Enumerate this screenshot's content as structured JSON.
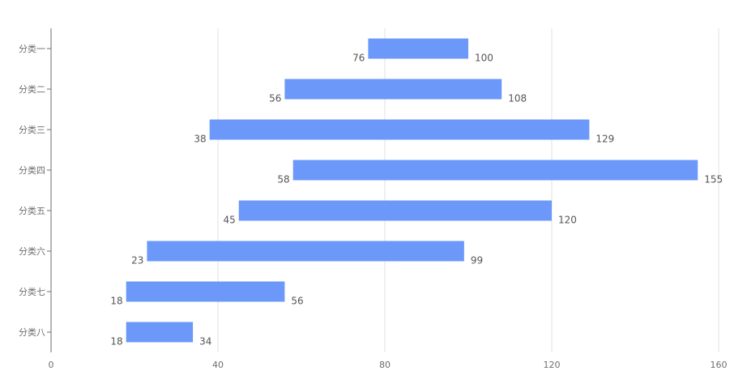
{
  "chart_data": {
    "type": "bar",
    "orientation": "horizontal",
    "title": "",
    "xlabel": "",
    "ylabel": "",
    "categories": [
      "分类一",
      "分类二",
      "分类三",
      "分类四",
      "分类五",
      "分类六",
      "分类七",
      "分类八"
    ],
    "series": [
      {
        "type": "floating-range",
        "start": [
          76,
          56,
          38,
          58,
          45,
          23,
          18,
          18
        ],
        "end": [
          100,
          108,
          129,
          155,
          120,
          99,
          56,
          34
        ]
      }
    ],
    "xlim": [
      0,
      160
    ],
    "xticks": [
      "0",
      "40",
      "80",
      "120",
      "160"
    ],
    "grid": "vertical",
    "bar_color": "#6b98f9"
  }
}
